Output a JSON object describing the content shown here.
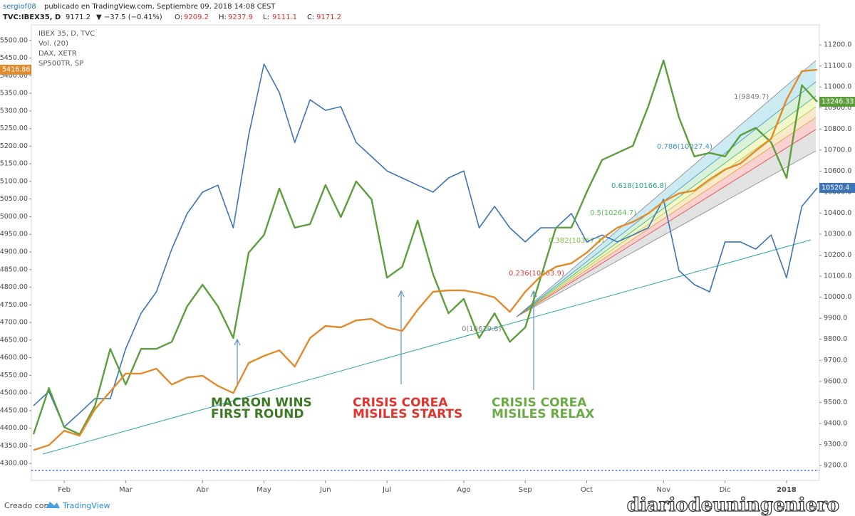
{
  "header": {
    "author": "sergiof08",
    "published": "publicado en TradingView.com, Septiembre 09, 2018 14:08 CEST",
    "symbol": "TVC:IBEX35, D",
    "last": "9171.2",
    "change": "▼ −37.5 (−0.41%)",
    "ohlc": [
      {
        "label": "O:",
        "value": "9209.2"
      },
      {
        "label": "H:",
        "value": "9237.9"
      },
      {
        "label": "L:",
        "value": "9111.1"
      },
      {
        "label": "C:",
        "value": "9171.2"
      }
    ]
  },
  "chart_data": {
    "type": "line",
    "categories": [
      null,
      null,
      "Feb",
      null,
      null,
      null,
      "Mar",
      null,
      null,
      null,
      null,
      "Abr",
      null,
      null,
      null,
      "May",
      null,
      null,
      null,
      "Jun",
      null,
      null,
      null,
      "Jul",
      null,
      null,
      null,
      null,
      "Ago",
      null,
      null,
      null,
      "Sep",
      null,
      null,
      null,
      "Oct",
      null,
      null,
      null,
      null,
      "Nov",
      null,
      null,
      null,
      "Dic",
      null,
      null,
      null,
      "2018",
      null,
      null
    ],
    "indicators": [
      "Vol. (20)"
    ],
    "series": [
      {
        "name": "IBEX 35, D, TVC",
        "color": "#3d74b8",
        "axis": "y2",
        "price_tag": "10520.4",
        "values": [
          9484,
          9552,
          9383,
          9450,
          9518,
          9518,
          9755,
          9924,
          10026,
          10229,
          10398,
          10500,
          10533,
          10330,
          10770,
          11109,
          10973,
          10736,
          10939,
          10889,
          10906,
          10736,
          10669,
          10601,
          10567,
          10533,
          10500,
          10567,
          10601,
          10330,
          10432,
          10330,
          10263,
          10330,
          10330,
          10398,
          10263,
          10296,
          10263,
          10296,
          10330,
          10466,
          10127,
          10060,
          10026,
          10263,
          10263,
          10229,
          10296,
          10093,
          10432,
          10520
        ]
      },
      {
        "name": "DAX, XETR",
        "color": "#5c9e3c",
        "price_tag": "13246.33",
        "values": [
          4383,
          4514,
          4403,
          4383,
          4464,
          4625,
          4524,
          4625,
          4625,
          4645,
          4746,
          4807,
          4746,
          4656,
          4898,
          4948,
          5080,
          4969,
          4979,
          5090,
          4999,
          5100,
          5049,
          4827,
          4858,
          4989,
          4837,
          4726,
          4767,
          4656,
          4726,
          4645,
          4686,
          4827,
          4969,
          4969,
          5070,
          5161,
          5181,
          5201,
          5312,
          5443,
          5282,
          5171,
          5181,
          5171,
          5231,
          5252,
          5211,
          5110,
          5373,
          5326
        ]
      },
      {
        "name": "SP500TR, SP",
        "color": "#e08a2c",
        "price_tag": "5416.86",
        "values": [
          4338,
          4352,
          4393,
          4379,
          4454,
          4504,
          4555,
          4555,
          4569,
          4524,
          4544,
          4549,
          4520,
          4500,
          4585,
          4605,
          4621,
          4575,
          4656,
          4690,
          4686,
          4706,
          4710,
          4686,
          4676,
          4736,
          4787,
          4791,
          4791,
          4783,
          4771,
          4730,
          4787,
          4831,
          4858,
          4868,
          4898,
          4938,
          4969,
          4985,
          5009,
          5043,
          5066,
          5074,
          5106,
          5134,
          5151,
          5187,
          5221,
          5332,
          5413,
          5417
        ]
      }
    ],
    "ylim": [
      4252,
      5544
    ],
    "yticks": [
      {
        "value": 4300,
        "label": "4300.00"
      },
      {
        "value": 4350,
        "label": "4350.00"
      },
      {
        "value": 4400,
        "label": "4400.00"
      },
      {
        "value": 4450,
        "label": "4450.00"
      },
      {
        "value": 4500,
        "label": "4500.00"
      },
      {
        "value": 4550,
        "label": "4550.00"
      },
      {
        "value": 4600,
        "label": "4600.00"
      },
      {
        "value": 4650,
        "label": "4650.00"
      },
      {
        "value": 4700,
        "label": "4700.00"
      },
      {
        "value": 4750,
        "label": "4750.00"
      },
      {
        "value": 4800,
        "label": "4800.00"
      },
      {
        "value": 4850,
        "label": "4850.00"
      },
      {
        "value": 4900,
        "label": "4900.00"
      },
      {
        "value": 4950,
        "label": "4950.00"
      },
      {
        "value": 5000,
        "label": "5000.00"
      },
      {
        "value": 5050,
        "label": "5050.00"
      },
      {
        "value": 5100,
        "label": "5100.00"
      },
      {
        "value": 5150,
        "label": "5150.00"
      },
      {
        "value": 5200,
        "label": "5200.00"
      },
      {
        "value": 5250,
        "label": "5250.00"
      },
      {
        "value": 5300,
        "label": "5300.00"
      },
      {
        "value": 5350,
        "label": "5350.00"
      },
      {
        "value": 5400,
        "label": "5400.00"
      },
      {
        "value": 5450,
        "label": "5450.00"
      },
      {
        "value": 5500,
        "label": "5500.00"
      }
    ],
    "y2lim": [
      9129,
      11295
    ],
    "y2ticks": [
      {
        "value": 9200,
        "label": "9200.0"
      },
      {
        "value": 9300,
        "label": "9300.0"
      },
      {
        "value": 9400,
        "label": "9400.0"
      },
      {
        "value": 9500,
        "label": "9500.0"
      },
      {
        "value": 9600,
        "label": "9600.0"
      },
      {
        "value": 9700,
        "label": "9700.0"
      },
      {
        "value": 9800,
        "label": "9800.0"
      },
      {
        "value": 9900,
        "label": "9900.0"
      },
      {
        "value": 10000,
        "label": "10000.0"
      },
      {
        "value": 10100,
        "label": "10100.0"
      },
      {
        "value": 10200,
        "label": "10200.0"
      },
      {
        "value": 10300,
        "label": "10300.0"
      },
      {
        "value": 10400,
        "label": "10400.0"
      },
      {
        "value": 10500,
        "label": "10500.0"
      },
      {
        "value": 10600,
        "label": "10600.0"
      },
      {
        "value": 10700,
        "label": "10700.0"
      },
      {
        "value": 10800,
        "label": "10800.0"
      },
      {
        "value": 10900,
        "label": "10900.0"
      },
      {
        "value": 11000,
        "label": "11000.0"
      },
      {
        "value": 11100,
        "label": "11100.0"
      },
      {
        "value": 11200,
        "label": "11200.0"
      }
    ],
    "grid": false,
    "fib_labels": [
      {
        "text": "0(10679.8)",
        "color": "#808080"
      },
      {
        "text": "0.236(10463.9)",
        "color": "#e04040"
      },
      {
        "text": "0.382(10367.3)",
        "color": "#7fbf3f"
      },
      {
        "text": "0.5(10264.7)",
        "color": "#5cb85c"
      },
      {
        "text": "0.618(10166.8)",
        "color": "#29a38a"
      },
      {
        "text": "0.786(10027.4)",
        "color": "#3b8fc4"
      },
      {
        "text": "1(9849.7)",
        "color": "#808080"
      }
    ],
    "annotations": [
      {
        "lines": [
          "MACRON WINS",
          "FIRST ROUND"
        ],
        "color": "#3c7a23"
      },
      {
        "lines": [
          "CRISIS COREA",
          "MISILES STARTS"
        ],
        "color": "#e2342f"
      },
      {
        "lines": [
          "CRISIS COREA",
          "MISILES RELAX"
        ],
        "color": "#6bab44"
      }
    ]
  },
  "footer": {
    "created": "Creado con",
    "brand": "TradingView",
    "watermark": "diariodeuningeniero"
  }
}
